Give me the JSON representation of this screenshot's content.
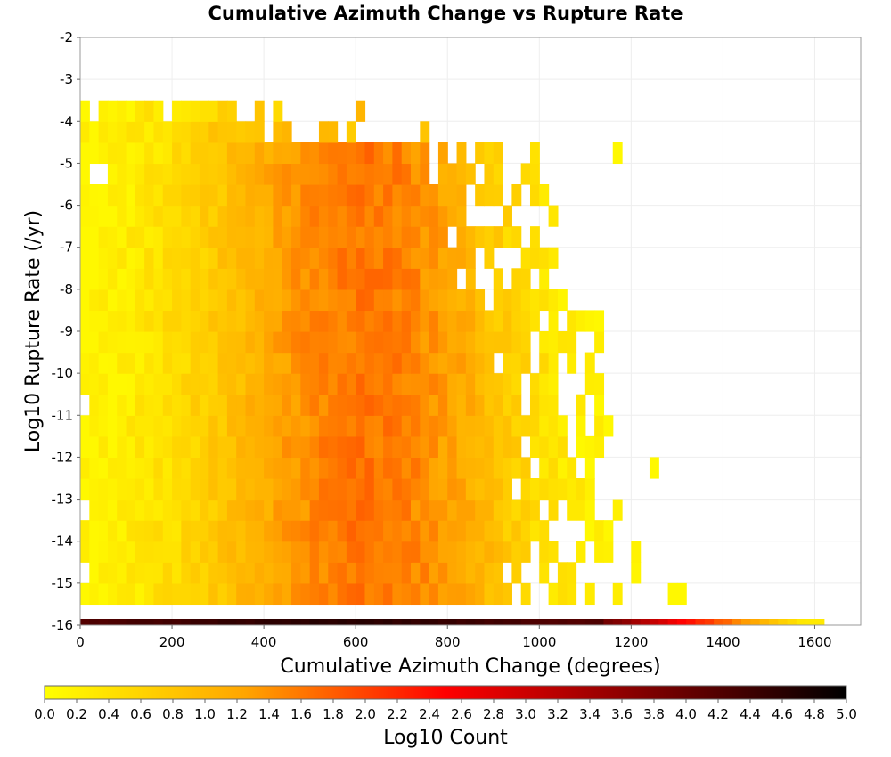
{
  "chart_data": {
    "type": "heatmap",
    "title": "Cumulative Azimuth Change vs Rupture Rate",
    "xlabel": "Cumulative Azimuth Change (degrees)",
    "ylabel": "Log10 Rupture Rate (/yr)",
    "xlim": [
      0,
      1700
    ],
    "ylim": [
      -16,
      -2
    ],
    "x_ticks": [
      0,
      200,
      400,
      600,
      800,
      1000,
      1200,
      1400,
      1600
    ],
    "y_ticks": [
      -2,
      -3,
      -4,
      -5,
      -6,
      -7,
      -8,
      -9,
      -10,
      -11,
      -12,
      -13,
      -14,
      -15,
      -16
    ],
    "grid": true,
    "bin_width_x": 20,
    "bin_height_y": 0.5,
    "colorbar": {
      "label": "Log10 Count",
      "range": [
        0.0,
        5.0
      ],
      "ticks": [
        "0.0",
        "0.2",
        "0.4",
        "0.6",
        "0.8",
        "1.0",
        "1.2",
        "1.4",
        "1.6",
        "1.8",
        "2.0",
        "2.2",
        "2.4",
        "2.6",
        "2.8",
        "3.0",
        "3.2",
        "3.4",
        "3.6",
        "3.8",
        "4.0",
        "4.2",
        "4.4",
        "4.6",
        "4.8",
        "5.0"
      ],
      "colormap": [
        "#ffff00",
        "#ffa500",
        "#ff0000",
        "#800000",
        "#000000"
      ]
    },
    "density_summary": {
      "x_extent": [
        0,
        1620
      ],
      "y_extent": [
        -16.0,
        -3.3
      ],
      "peak_x": 620,
      "peak_log10_count": 1.6,
      "bottom_row_log10_rate": -16.0,
      "bottom_row_peak_log10_count": 4.6
    }
  }
}
